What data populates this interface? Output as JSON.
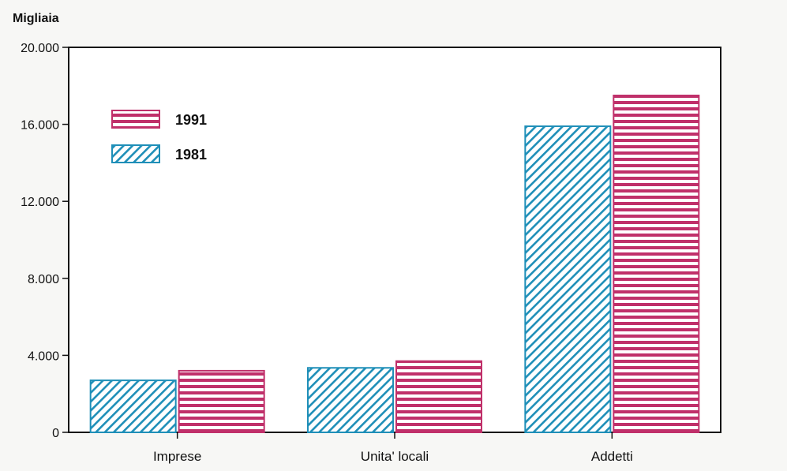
{
  "chart_data": {
    "type": "bar",
    "ylabel": "Migliaia",
    "categories": [
      "Imprese",
      "Unita' locali",
      "Addetti"
    ],
    "series": [
      {
        "name": "1981",
        "values": [
          2700,
          3350,
          15900
        ],
        "color": "#1f8fb8",
        "pattern": "diagonal-hatch"
      },
      {
        "name": "1991",
        "values": [
          3200,
          3700,
          17500
        ],
        "color": "#c0306a",
        "pattern": "horizontal-stripes"
      }
    ],
    "ylim": [
      0,
      20000
    ],
    "yticks": [
      0,
      4000,
      8000,
      12000,
      16000,
      20000
    ],
    "ytick_labels": [
      "0",
      "4.000",
      "8.000",
      "12.000",
      "16.000",
      "20.000"
    ],
    "legend": {
      "position": "top-left",
      "entries": [
        {
          "label": "1991",
          "series": "1991"
        },
        {
          "label": "1981",
          "series": "1981"
        }
      ]
    },
    "grid": false
  }
}
